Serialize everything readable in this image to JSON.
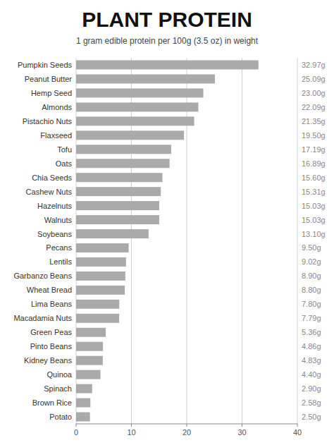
{
  "chart_data": {
    "type": "bar",
    "orientation": "horizontal",
    "title": "PLANT PROTEIN",
    "subtitle": "1 gram edible protein per 100g (3.5 oz) in weight",
    "categories": [
      "Potato",
      "Brown Rice",
      "Spinach",
      "Quinoa",
      "Kidney Beans",
      "Pinto Beans",
      "Green Peas",
      "Macadamia Nuts",
      "Lima Beans",
      "Wheat Bread",
      "Garbanzo Beans",
      "Lentils",
      "Pecans",
      "Soybeans",
      "Walnuts",
      "Hazelnuts",
      "Cashew Nuts",
      "Chia Seeds",
      "Oats",
      "Tofu",
      "Flaxseed",
      "Pistachio Nuts",
      "Almonds",
      "Hemp Seed",
      "Peanut Butter",
      "Pumpkin Seeds"
    ],
    "values": [
      2.5,
      2.58,
      2.9,
      4.4,
      4.83,
      4.86,
      5.36,
      7.79,
      7.8,
      8.8,
      8.9,
      9.02,
      9.5,
      13.1,
      15.03,
      15.03,
      15.31,
      15.6,
      16.89,
      17.19,
      19.5,
      21.35,
      22.09,
      23.0,
      25.09,
      32.97
    ],
    "value_labels": [
      "2.50g",
      "2.58g",
      "2.90g",
      "4.40g",
      "4.83g",
      "4.86g",
      "5.36g",
      "7.79g",
      "7.80g",
      "8.80g",
      "8.90g",
      "9.02g",
      "9.50g",
      "13.10g",
      "15.03g",
      "15.03g",
      "15.31g",
      "15.60g",
      "16.89g",
      "17.19g",
      "19.50g",
      "21.35g",
      "22.09g",
      "23.00g",
      "25.09g",
      "32.97g"
    ],
    "data_labels": true,
    "color": "#aaaaaa",
    "xlim": [
      0,
      40
    ],
    "xticks": [
      0,
      10,
      20,
      30,
      40
    ],
    "grid": true
  }
}
